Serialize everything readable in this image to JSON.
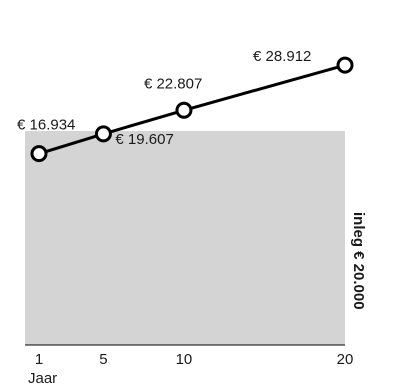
{
  "chart_data": {
    "type": "line",
    "x": [
      1,
      5,
      10,
      20
    ],
    "series": [
      {
        "values": [
          16934,
          19607,
          22807,
          28912
        ],
        "labels": [
          "€ 16.934",
          "€ 19.607",
          "€ 22.807",
          "€ 28.912"
        ]
      }
    ],
    "xticks": [
      "1",
      "5",
      "10",
      "20"
    ],
    "xlabel": "Jaar",
    "deposit": {
      "value": 20000,
      "label": "inleg € 20.000"
    },
    "colors": {
      "deposit_fill": "#d4d4d4",
      "line": "#000000",
      "marker_fill": "#ffffff"
    }
  }
}
